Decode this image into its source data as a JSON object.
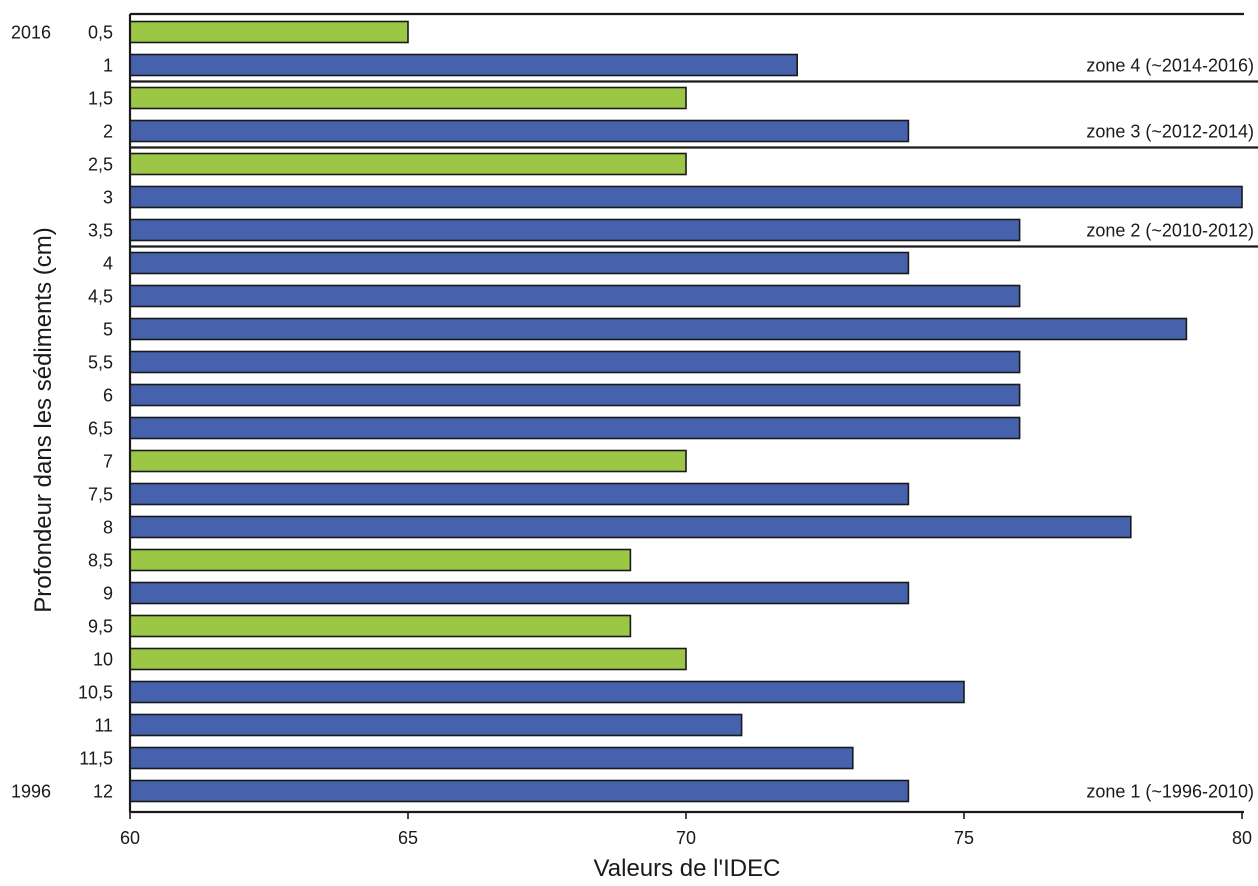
{
  "chart_data": {
    "type": "bar",
    "orientation": "horizontal",
    "xlabel": "Valeurs de l'IDEC",
    "ylabel": "Profondeur dans les sédiments (cm)",
    "xlim": [
      60,
      80
    ],
    "x_ticks": [
      "60",
      "65",
      "70",
      "75",
      "80"
    ],
    "grid": false,
    "categories": [
      "0,5",
      "1",
      "1,5",
      "2",
      "2,5",
      "3",
      "3,5",
      "4",
      "4,5",
      "5",
      "5,5",
      "6",
      "6,5",
      "7",
      "7,5",
      "8",
      "8,5",
      "9",
      "9,5",
      "10",
      "10,5",
      "11",
      "11,5",
      "12"
    ],
    "values": [
      65,
      72,
      70,
      74,
      70,
      80,
      76,
      74,
      76,
      79,
      76,
      76,
      76,
      70,
      74,
      78,
      69,
      74,
      69,
      70,
      75,
      71,
      73,
      74
    ],
    "bar_colors": [
      "green",
      "blue",
      "green",
      "blue",
      "green",
      "blue",
      "blue",
      "blue",
      "blue",
      "blue",
      "blue",
      "blue",
      "blue",
      "green",
      "blue",
      "blue",
      "green",
      "blue",
      "green",
      "green",
      "blue",
      "blue",
      "blue",
      "blue"
    ],
    "colors": {
      "blue": "#4762ad",
      "green": "#9bc646",
      "axis": "#1a1a1a"
    },
    "year_labels": [
      {
        "category": "0,5",
        "text": "2016"
      },
      {
        "category": "12",
        "text": "1996"
      }
    ],
    "zones": [
      {
        "label": "zone 4 (~2014-2016)",
        "label_at": "1",
        "boundary_after": "1"
      },
      {
        "label": "zone 3 (~2012-2014)",
        "label_at": "2",
        "boundary_after": "2"
      },
      {
        "label": "zone 2 (~2010-2012)",
        "label_at": "3,5",
        "boundary_after": "3,5"
      },
      {
        "label": "zone 1 (~1996-2010)",
        "label_at": "12",
        "boundary_after": null
      }
    ]
  }
}
